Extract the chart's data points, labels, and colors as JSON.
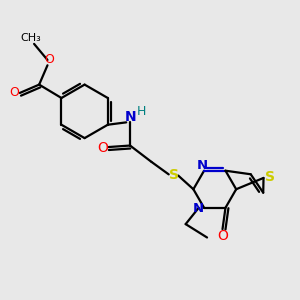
{
  "bg_color": "#e8e8e8",
  "bond_color": "#000000",
  "n_color": "#0000cc",
  "o_color": "#ff0000",
  "s_color": "#cccc00",
  "h_color": "#008080",
  "line_width": 1.6,
  "figsize": [
    3.0,
    3.0
  ],
  "dpi": 100,
  "xlim": [
    0,
    10
  ],
  "ylim": [
    0,
    10
  ]
}
